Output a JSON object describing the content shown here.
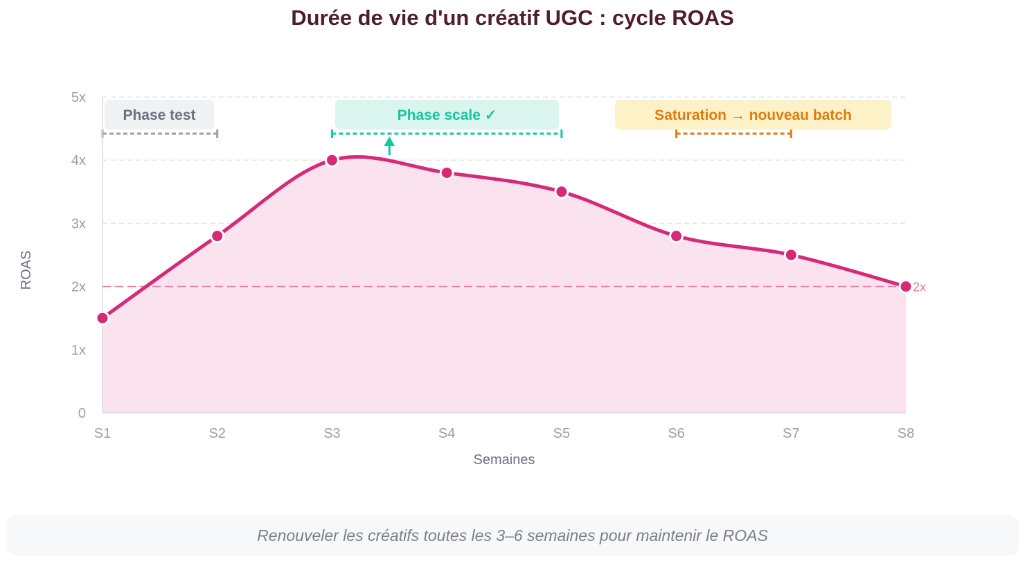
{
  "chart_data": {
    "type": "area",
    "title": "Durée de vie d'un créatif UGC : cycle ROAS",
    "xlabel": "Semaines",
    "ylabel": "ROAS",
    "categories": [
      "S1",
      "S2",
      "S3",
      "S4",
      "S5",
      "S6",
      "S7",
      "S8"
    ],
    "values": [
      1.5,
      2.8,
      4.0,
      3.8,
      3.5,
      2.8,
      2.5,
      2.0
    ],
    "ylim": [
      0,
      5
    ],
    "y_ticks": [
      {
        "value": 0,
        "label": "0"
      },
      {
        "value": 1,
        "label": "1x"
      },
      {
        "value": 2,
        "label": "2x"
      },
      {
        "value": 3,
        "label": "3x"
      },
      {
        "value": 4,
        "label": "4x"
      },
      {
        "value": 5,
        "label": "5x"
      }
    ],
    "grid": true,
    "reference_line": {
      "value": 2,
      "label": "2x",
      "color": "#e879a8"
    },
    "phases": [
      {
        "label": "Phase test",
        "start": 0,
        "end": 1,
        "text_color": "#6b7280",
        "fill": "#f0f1f3",
        "line_color": "#9aa0aa"
      },
      {
        "label": "Phase scale ✓",
        "start": 2,
        "end": 4,
        "text_color": "#10c9a0",
        "fill": "#d9f5ee",
        "line_color": "#10c9a0"
      },
      {
        "label": "Saturation → nouveau batch",
        "start": 5,
        "end": 6,
        "text_color": "#e07b0c",
        "fill": "#fdf1c8",
        "line_color": "#e07b0c"
      }
    ],
    "colors": {
      "line": "#d62a78",
      "area": "#fae3ee",
      "axis": "#d9dbe3",
      "tick_text": "#9ca0ad"
    }
  },
  "footer": {
    "note": "Renouveler les créatifs toutes les 3–6 semaines pour maintenir le ROAS"
  }
}
